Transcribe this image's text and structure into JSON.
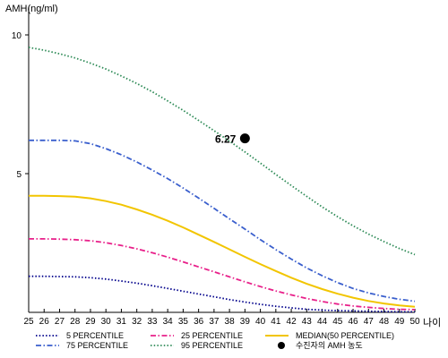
{
  "chart_data": {
    "type": "line",
    "ylabel": "AMH(ng/ml)",
    "xlabel": "나이",
    "xlim": [
      25,
      50
    ],
    "ylim": [
      0,
      11
    ],
    "yticks": [
      5,
      10
    ],
    "x": [
      25,
      26,
      27,
      28,
      29,
      30,
      31,
      32,
      33,
      34,
      35,
      36,
      37,
      38,
      39,
      40,
      41,
      42,
      43,
      44,
      45,
      46,
      47,
      48,
      49,
      50
    ],
    "grid": false,
    "series": [
      {
        "name": "95 PERCENTILE",
        "color": "#2e8b57",
        "style": "dotted",
        "values": [
          9.55,
          9.45,
          9.32,
          9.17,
          8.98,
          8.77,
          8.52,
          8.25,
          7.95,
          7.62,
          7.28,
          6.92,
          6.55,
          6.17,
          5.78,
          5.38,
          4.97,
          4.57,
          4.18,
          3.8,
          3.45,
          3.12,
          2.82,
          2.55,
          2.3,
          2.08
        ]
      },
      {
        "name": "75 PERCENTILE",
        "color": "#3a5fcd",
        "style": "dashdot",
        "values": [
          6.2,
          6.2,
          6.2,
          6.18,
          6.08,
          5.9,
          5.68,
          5.42,
          5.13,
          4.82,
          4.48,
          4.12,
          3.75,
          3.37,
          3.0,
          2.62,
          2.26,
          1.92,
          1.6,
          1.32,
          1.07,
          0.86,
          0.7,
          0.57,
          0.47,
          0.4
        ]
      },
      {
        "name": "MEDIAN(50 PERCENTILE)",
        "color": "#f2c500",
        "style": "solid",
        "values": [
          4.2,
          4.2,
          4.19,
          4.17,
          4.11,
          4.01,
          3.88,
          3.71,
          3.52,
          3.3,
          3.06,
          2.8,
          2.54,
          2.27,
          2.0,
          1.74,
          1.49,
          1.25,
          1.03,
          0.84,
          0.67,
          0.53,
          0.41,
          0.32,
          0.25,
          0.2
        ]
      },
      {
        "name": "25 PERCENTILE",
        "color": "#e8208a",
        "style": "dashdot",
        "values": [
          2.65,
          2.65,
          2.64,
          2.62,
          2.58,
          2.51,
          2.41,
          2.29,
          2.15,
          1.99,
          1.82,
          1.64,
          1.46,
          1.28,
          1.1,
          0.93,
          0.77,
          0.63,
          0.5,
          0.39,
          0.3,
          0.23,
          0.18,
          0.14,
          0.11,
          0.1
        ]
      },
      {
        "name": "5 PERCENTILE",
        "color": "#00008b",
        "style": "dotted",
        "values": [
          1.3,
          1.3,
          1.29,
          1.28,
          1.25,
          1.2,
          1.13,
          1.05,
          0.96,
          0.86,
          0.76,
          0.66,
          0.56,
          0.46,
          0.37,
          0.29,
          0.22,
          0.16,
          0.11,
          0.08,
          0.06,
          0.05,
          0.04,
          0.03,
          0.02,
          0.02
        ]
      }
    ],
    "point": {
      "name": "수진자의 AMH 농도",
      "x": 39,
      "y": 6.27,
      "label": "6.27",
      "color": "#000000"
    },
    "legend": {
      "placement": "bottom",
      "order": [
        "5 PERCENTILE",
        "25 PERCENTILE",
        "MEDIAN(50 PERCENTILE)",
        "75 PERCENTILE",
        "95 PERCENTILE",
        "수진자의 AMH 농도"
      ]
    }
  }
}
